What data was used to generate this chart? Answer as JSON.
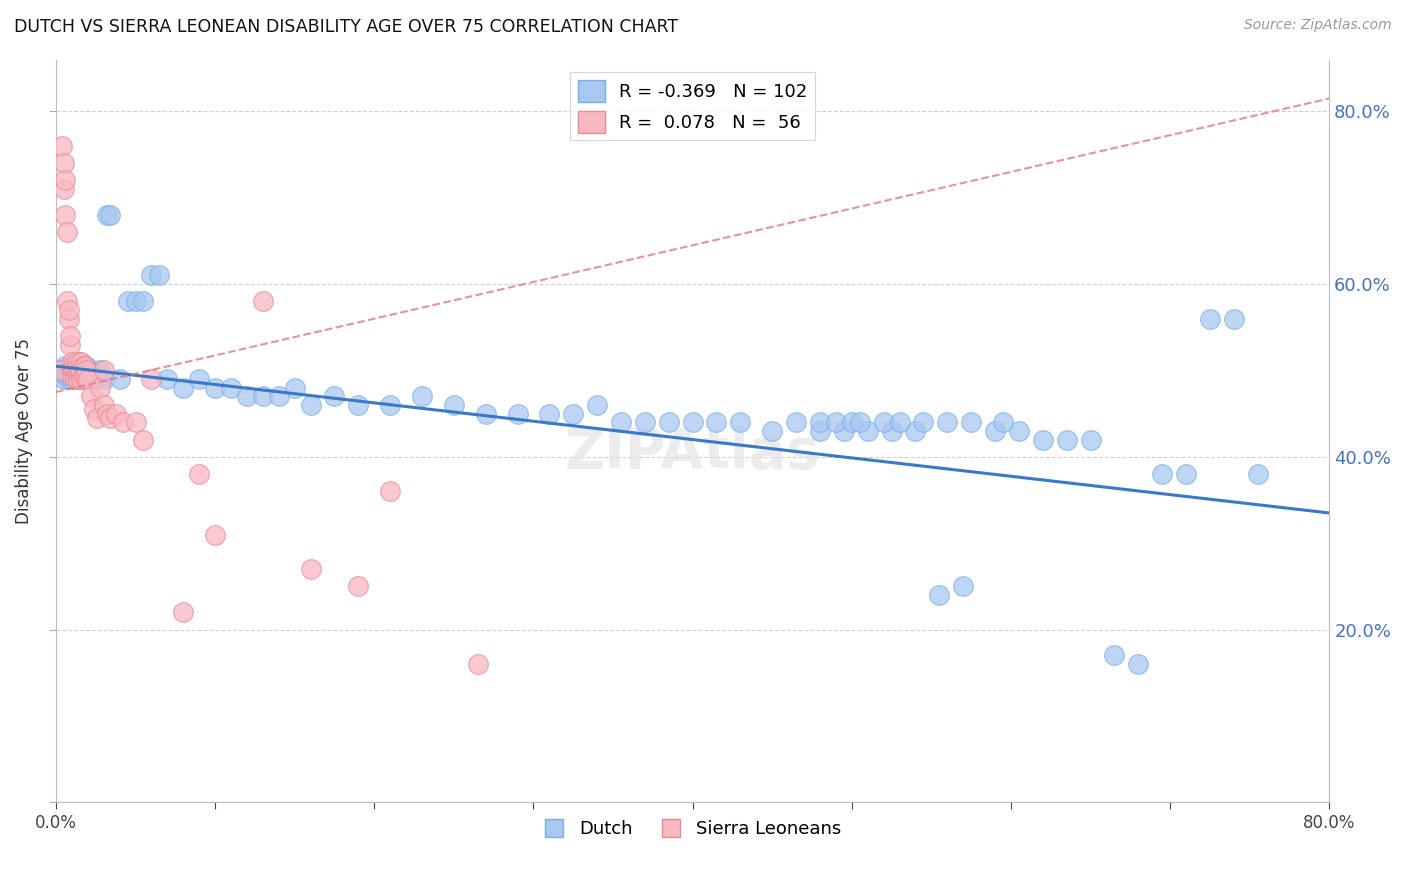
{
  "title": "DUTCH VS SIERRA LEONEAN DISABILITY AGE OVER 75 CORRELATION CHART",
  "source": "Source: ZipAtlas.com",
  "ylabel": "Disability Age Over 75",
  "xlim": [
    0.0,
    0.8
  ],
  "ylim": [
    0.0,
    0.86
  ],
  "dutch_color": "#a8c8f0",
  "dutch_edge_color": "#7aaee8",
  "dutch_line_color": "#3a78c9",
  "sierra_color": "#f8b8c0",
  "sierra_edge_color": "#e88898",
  "sierra_line_color": "#e07888",
  "dutch_R": -0.369,
  "dutch_N": 102,
  "sierra_R": 0.078,
  "sierra_N": 56,
  "dutch_line_start_y": 0.505,
  "dutch_line_end_y": 0.335,
  "sierra_line_start_y": 0.475,
  "sierra_line_end_y": 0.815,
  "watermark": "ZIPAtlas",
  "dutch_x": [
    0.004,
    0.005,
    0.005,
    0.006,
    0.006,
    0.007,
    0.007,
    0.008,
    0.008,
    0.009,
    0.009,
    0.01,
    0.01,
    0.011,
    0.011,
    0.012,
    0.012,
    0.013,
    0.013,
    0.014,
    0.014,
    0.015,
    0.015,
    0.016,
    0.016,
    0.017,
    0.017,
    0.018,
    0.018,
    0.019,
    0.019,
    0.02,
    0.022,
    0.024,
    0.026,
    0.028,
    0.03,
    0.032,
    0.034,
    0.04,
    0.045,
    0.05,
    0.055,
    0.06,
    0.065,
    0.07,
    0.08,
    0.09,
    0.1,
    0.11,
    0.12,
    0.13,
    0.14,
    0.15,
    0.16,
    0.175,
    0.19,
    0.21,
    0.23,
    0.25,
    0.27,
    0.29,
    0.31,
    0.325,
    0.34,
    0.355,
    0.37,
    0.385,
    0.4,
    0.415,
    0.43,
    0.45,
    0.465,
    0.48,
    0.495,
    0.51,
    0.525,
    0.54,
    0.555,
    0.57,
    0.59,
    0.605,
    0.62,
    0.635,
    0.65,
    0.665,
    0.68,
    0.695,
    0.71,
    0.725,
    0.74,
    0.755,
    0.48,
    0.49,
    0.5,
    0.505,
    0.52,
    0.53,
    0.545,
    0.56,
    0.575,
    0.595
  ],
  "dutch_y": [
    0.5,
    0.5,
    0.49,
    0.505,
    0.495,
    0.5,
    0.495,
    0.5,
    0.49,
    0.505,
    0.495,
    0.49,
    0.505,
    0.495,
    0.51,
    0.505,
    0.49,
    0.505,
    0.495,
    0.5,
    0.505,
    0.51,
    0.495,
    0.5,
    0.49,
    0.495,
    0.505,
    0.49,
    0.5,
    0.495,
    0.505,
    0.49,
    0.5,
    0.495,
    0.49,
    0.5,
    0.49,
    0.68,
    0.68,
    0.49,
    0.58,
    0.58,
    0.58,
    0.61,
    0.61,
    0.49,
    0.48,
    0.49,
    0.48,
    0.48,
    0.47,
    0.47,
    0.47,
    0.48,
    0.46,
    0.47,
    0.46,
    0.46,
    0.47,
    0.46,
    0.45,
    0.45,
    0.45,
    0.45,
    0.46,
    0.44,
    0.44,
    0.44,
    0.44,
    0.44,
    0.44,
    0.43,
    0.44,
    0.43,
    0.43,
    0.43,
    0.43,
    0.43,
    0.24,
    0.25,
    0.43,
    0.43,
    0.42,
    0.42,
    0.42,
    0.17,
    0.16,
    0.38,
    0.38,
    0.56,
    0.56,
    0.38,
    0.44,
    0.44,
    0.44,
    0.44,
    0.44,
    0.44,
    0.44,
    0.44,
    0.44,
    0.44
  ],
  "sierra_x": [
    0.003,
    0.004,
    0.005,
    0.005,
    0.006,
    0.006,
    0.007,
    0.007,
    0.008,
    0.008,
    0.009,
    0.009,
    0.01,
    0.01,
    0.01,
    0.011,
    0.011,
    0.012,
    0.012,
    0.013,
    0.013,
    0.014,
    0.014,
    0.015,
    0.015,
    0.015,
    0.016,
    0.016,
    0.017,
    0.017,
    0.018,
    0.018,
    0.019,
    0.019,
    0.02,
    0.022,
    0.024,
    0.026,
    0.028,
    0.03,
    0.032,
    0.034,
    0.038,
    0.042,
    0.05,
    0.055,
    0.06,
    0.08,
    0.09,
    0.1,
    0.13,
    0.16,
    0.19,
    0.21,
    0.265,
    0.03
  ],
  "sierra_y": [
    0.5,
    0.76,
    0.74,
    0.71,
    0.68,
    0.72,
    0.66,
    0.58,
    0.56,
    0.57,
    0.53,
    0.54,
    0.5,
    0.495,
    0.51,
    0.505,
    0.5,
    0.5,
    0.49,
    0.5,
    0.495,
    0.49,
    0.51,
    0.495,
    0.5,
    0.5,
    0.51,
    0.49,
    0.505,
    0.495,
    0.495,
    0.505,
    0.49,
    0.5,
    0.49,
    0.47,
    0.455,
    0.445,
    0.48,
    0.46,
    0.45,
    0.445,
    0.45,
    0.44,
    0.44,
    0.42,
    0.49,
    0.22,
    0.38,
    0.31,
    0.58,
    0.27,
    0.25,
    0.36,
    0.16,
    0.5
  ]
}
